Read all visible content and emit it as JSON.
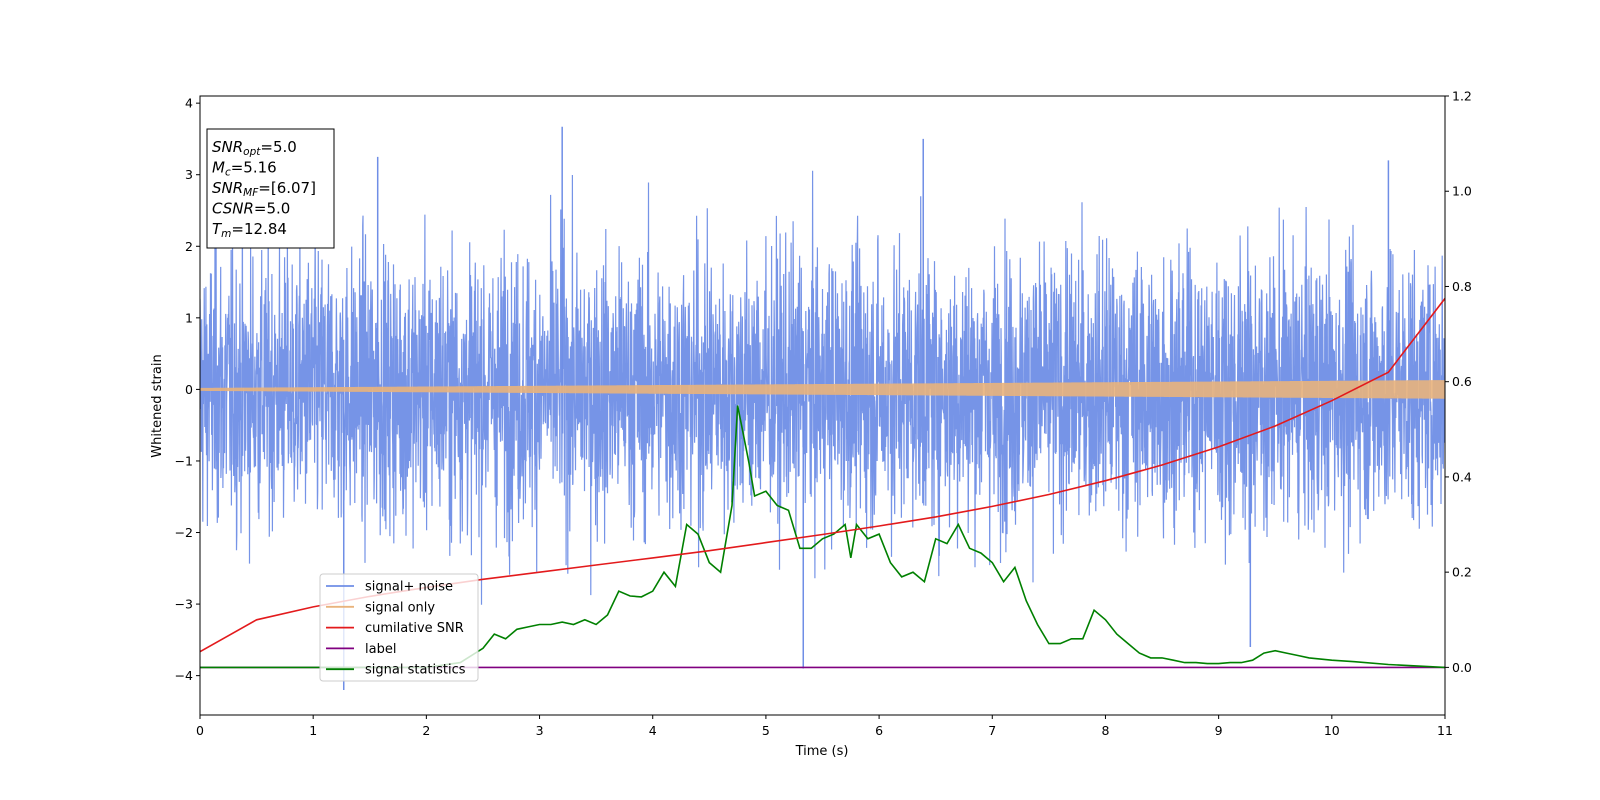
{
  "chart_data": {
    "type": "line",
    "xlabel": "Time (s)",
    "ylabel": "Whitened strain",
    "xlim": [
      0,
      11
    ],
    "ylim_left": [
      -4.55,
      4.1
    ],
    "ylim_right": [
      -0.1,
      1.2
    ],
    "xticks": [
      0,
      1,
      2,
      3,
      4,
      5,
      6,
      7,
      8,
      9,
      10,
      11
    ],
    "yticks_left": [
      -4,
      -3,
      -2,
      -1,
      0,
      1,
      2,
      3,
      4
    ],
    "yticks_left_labels": [
      "−4",
      "−3",
      "−2",
      "−1",
      "0",
      "1",
      "2",
      "3",
      "4"
    ],
    "yticks_right": [
      0.0,
      0.2,
      0.4,
      0.6,
      0.8,
      1.0,
      1.2
    ],
    "yticks_right_labels": [
      "0.0",
      "0.2",
      "0.4",
      "0.6",
      "0.8",
      "1.0",
      "1.2"
    ],
    "grid": false,
    "legend_position": "lower-left",
    "colors": {
      "signal_noise": "#6f8ee6",
      "signal_only": "#e9b37c",
      "cumulative_snr": "#e31a1c",
      "label": "#800080",
      "signal_statistics": "#008000"
    },
    "series": [
      {
        "name": "signal+ noise",
        "axis": "left",
        "description_range": [
          -4.2,
          3.7
        ],
        "peaks_x": [
          1.27,
          1.57,
          3.2,
          5.33,
          6.39,
          9.28,
          10.5
        ],
        "peaks_y": [
          -4.2,
          3.25,
          3.67,
          -3.9,
          3.5,
          -3.6,
          3.2
        ]
      },
      {
        "name": "signal only",
        "axis": "left",
        "amplitude_start": 0.02,
        "amplitude_end": 0.13
      },
      {
        "name": "cumilative SNR",
        "axis": "right",
        "x": [
          0,
          0.5,
          1,
          1.5,
          2,
          2.5,
          3,
          3.5,
          4,
          4.5,
          5,
          5.5,
          6,
          6.5,
          7,
          7.5,
          8,
          8.5,
          9,
          9.5,
          10,
          10.5,
          11
        ],
        "y": [
          0.033,
          0.1,
          0.127,
          0.149,
          0.168,
          0.185,
          0.2,
          0.215,
          0.23,
          0.245,
          0.262,
          0.279,
          0.297,
          0.316,
          0.338,
          0.363,
          0.392,
          0.425,
          0.463,
          0.507,
          0.56,
          0.62,
          0.775
        ]
      },
      {
        "name": "label",
        "axis": "right",
        "x": [
          0,
          11
        ],
        "y": [
          0,
          0
        ]
      },
      {
        "name": "signal statistics",
        "axis": "right",
        "x": [
          0,
          1,
          2,
          2.3,
          2.5,
          2.6,
          2.7,
          2.8,
          2.9,
          3.0,
          3.1,
          3.2,
          3.3,
          3.4,
          3.5,
          3.6,
          3.7,
          3.8,
          3.9,
          4.0,
          4.1,
          4.2,
          4.3,
          4.4,
          4.5,
          4.6,
          4.7,
          4.75,
          4.8,
          4.85,
          4.9,
          5.0,
          5.1,
          5.2,
          5.3,
          5.4,
          5.5,
          5.6,
          5.7,
          5.75,
          5.8,
          5.9,
          6.0,
          6.1,
          6.2,
          6.3,
          6.4,
          6.5,
          6.6,
          6.7,
          6.8,
          6.9,
          7.0,
          7.1,
          7.2,
          7.3,
          7.4,
          7.5,
          7.6,
          7.7,
          7.8,
          7.9,
          8.0,
          8.1,
          8.2,
          8.3,
          8.4,
          8.5,
          8.6,
          8.7,
          8.8,
          8.9,
          9.0,
          9.1,
          9.2,
          9.3,
          9.4,
          9.5,
          9.6,
          9.7,
          9.8,
          10.0,
          10.2,
          10.5,
          11
        ],
        "y": [
          0,
          0,
          0,
          0.01,
          0.04,
          0.07,
          0.06,
          0.08,
          0.085,
          0.09,
          0.09,
          0.095,
          0.09,
          0.1,
          0.09,
          0.11,
          0.16,
          0.15,
          0.148,
          0.16,
          0.2,
          0.17,
          0.3,
          0.28,
          0.22,
          0.2,
          0.34,
          0.55,
          0.49,
          0.43,
          0.36,
          0.37,
          0.34,
          0.33,
          0.25,
          0.25,
          0.27,
          0.28,
          0.3,
          0.23,
          0.3,
          0.27,
          0.28,
          0.22,
          0.19,
          0.2,
          0.18,
          0.27,
          0.26,
          0.3,
          0.25,
          0.24,
          0.22,
          0.18,
          0.21,
          0.14,
          0.09,
          0.05,
          0.05,
          0.06,
          0.06,
          0.12,
          0.1,
          0.07,
          0.05,
          0.03,
          0.02,
          0.02,
          0.015,
          0.01,
          0.01,
          0.008,
          0.008,
          0.01,
          0.01,
          0.015,
          0.03,
          0.035,
          0.03,
          0.025,
          0.02,
          0.015,
          0.012,
          0.006,
          0.0
        ]
      }
    ],
    "info_box": {
      "lines": [
        {
          "main": "SNR",
          "sub": "opt",
          "value": "=5.0"
        },
        {
          "main": "M",
          "sub": "c",
          "value": "=5.16"
        },
        {
          "main": "SNR",
          "sub": "MF",
          "value": "=[6.07]"
        },
        {
          "main": "CSNR",
          "sub": "",
          "value": "=5.0"
        },
        {
          "main": "T",
          "sub": "m",
          "value": "=12.84"
        }
      ]
    },
    "legend": [
      {
        "label": "signal+ noise",
        "key": "signal_noise"
      },
      {
        "label": "signal only",
        "key": "signal_only"
      },
      {
        "label": "cumilative SNR",
        "key": "cumulative_snr"
      },
      {
        "label": "label",
        "key": "label"
      },
      {
        "label": "signal statistics",
        "key": "signal_statistics"
      }
    ]
  }
}
